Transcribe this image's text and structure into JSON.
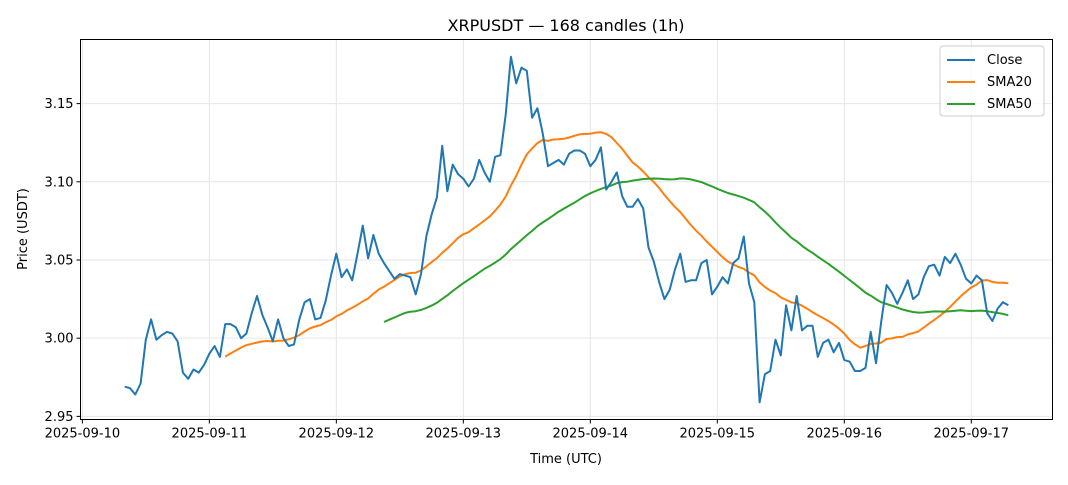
{
  "chart_data": {
    "type": "line",
    "title": "XRPUSDT — 168 candles (1h)",
    "xlabel": "Time (UTC)",
    "ylabel": "Price (USDT)",
    "x_start": "2025-09-10 08:00",
    "x_step_hours": 1,
    "xlim_hours_from_2025-09-10": [
      -0.35,
      183.35
    ],
    "ylim": [
      2.948,
      3.191
    ],
    "grid": true,
    "legend_placement": "top-right",
    "x_ticks": [
      {
        "label": "2025-09-10",
        "hour": 0
      },
      {
        "label": "2025-09-11",
        "hour": 24
      },
      {
        "label": "2025-09-12",
        "hour": 48
      },
      {
        "label": "2025-09-13",
        "hour": 72
      },
      {
        "label": "2025-09-14",
        "hour": 96
      },
      {
        "label": "2025-09-15",
        "hour": 120
      },
      {
        "label": "2025-09-16",
        "hour": 144
      },
      {
        "label": "2025-09-17",
        "hour": 168
      }
    ],
    "y_ticks": [
      {
        "label": "2.95",
        "value": 2.95
      },
      {
        "label": "3.00",
        "value": 3.0
      },
      {
        "label": "3.05",
        "value": 3.05
      },
      {
        "label": "3.10",
        "value": 3.1
      },
      {
        "label": "3.15",
        "value": 3.15
      }
    ],
    "series": [
      {
        "name": "Close",
        "color": "#1f77b4",
        "values": [
          2.969,
          2.968,
          2.964,
          2.971,
          2.999,
          3.012,
          2.999,
          3.002,
          3.004,
          3.003,
          2.998,
          2.978,
          2.974,
          2.98,
          2.978,
          2.983,
          2.99,
          2.995,
          2.988,
          3.009,
          3.009,
          3.007,
          3.0,
          3.003,
          3.016,
          3.027,
          3.015,
          3.007,
          2.998,
          3.012,
          3.0,
          2.995,
          2.996,
          3.012,
          3.023,
          3.025,
          3.012,
          3.013,
          3.024,
          3.04,
          3.054,
          3.039,
          3.044,
          3.037,
          3.054,
          3.072,
          3.051,
          3.066,
          3.054,
          3.048,
          3.043,
          3.038,
          3.041,
          3.04,
          3.039,
          3.028,
          3.041,
          3.065,
          3.079,
          3.09,
          3.123,
          3.094,
          3.111,
          3.105,
          3.102,
          3.097,
          3.102,
          3.114,
          3.106,
          3.1,
          3.116,
          3.117,
          3.143,
          3.18,
          3.163,
          3.173,
          3.171,
          3.141,
          3.147,
          3.131,
          3.11,
          3.112,
          3.114,
          3.111,
          3.118,
          3.12,
          3.12,
          3.118,
          3.11,
          3.114,
          3.122,
          3.095,
          3.1,
          3.106,
          3.091,
          3.084,
          3.084,
          3.089,
          3.083,
          3.058,
          3.049,
          3.036,
          3.025,
          3.031,
          3.044,
          3.054,
          3.036,
          3.037,
          3.037,
          3.048,
          3.05,
          3.028,
          3.033,
          3.039,
          3.035,
          3.048,
          3.051,
          3.065,
          3.035,
          3.023,
          2.959,
          2.977,
          2.979,
          2.999,
          2.989,
          3.021,
          3.005,
          3.027,
          3.005,
          3.008,
          3.008,
          2.988,
          2.997,
          2.999,
          2.991,
          2.997,
          2.986,
          2.985,
          2.979,
          2.979,
          2.981,
          3.004,
          2.984,
          3.011,
          3.034,
          3.029,
          3.022,
          3.029,
          3.037,
          3.025,
          3.028,
          3.039,
          3.046,
          3.047,
          3.04,
          3.052,
          3.048,
          3.054,
          3.047,
          3.038,
          3.035,
          3.04,
          3.037,
          3.016,
          3.011,
          3.019,
          3.023,
          3.021
        ]
      },
      {
        "name": "SMA20",
        "color": "#ff7f0e",
        "window": 20
      },
      {
        "name": "SMA50",
        "color": "#2ca02c",
        "window": 50
      }
    ]
  }
}
